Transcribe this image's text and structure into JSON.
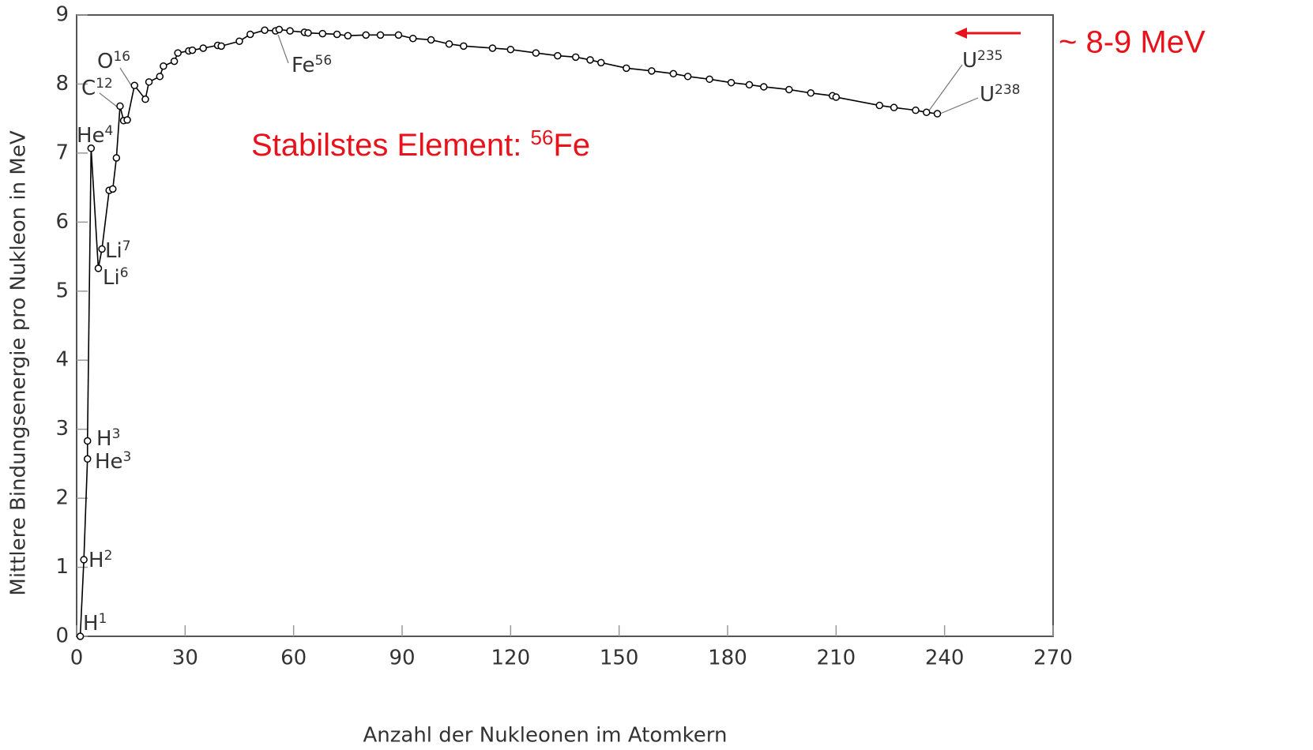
{
  "chart_data": {
    "type": "line",
    "xlabel": "Anzahl der Nukleonen im Atomkern",
    "ylabel": "Mittlere Bindungsenergie pro Nukleon in MeV",
    "x": [
      1,
      2,
      3,
      3,
      4,
      6,
      7,
      9,
      10,
      11,
      12,
      13,
      14,
      16,
      19,
      20,
      23,
      24,
      27,
      28,
      31,
      32,
      35,
      39,
      40,
      45,
      48,
      52,
      55,
      56,
      59,
      63,
      64,
      68,
      72,
      75,
      80,
      84,
      89,
      93,
      98,
      103,
      107,
      115,
      120,
      127,
      133,
      138,
      142,
      145,
      152,
      159,
      165,
      169,
      175,
      181,
      186,
      190,
      197,
      203,
      209,
      210,
      222,
      226,
      232,
      235,
      238
    ],
    "values": [
      0,
      1.11,
      2.57,
      2.83,
      7.07,
      5.33,
      5.61,
      6.46,
      6.48,
      6.93,
      7.68,
      7.47,
      7.48,
      7.98,
      7.78,
      8.03,
      8.11,
      8.26,
      8.33,
      8.45,
      8.48,
      8.49,
      8.52,
      8.56,
      8.55,
      8.62,
      8.72,
      8.78,
      8.77,
      8.79,
      8.77,
      8.75,
      8.74,
      8.73,
      8.72,
      8.7,
      8.71,
      8.71,
      8.71,
      8.66,
      8.64,
      8.58,
      8.55,
      8.52,
      8.5,
      8.45,
      8.41,
      8.39,
      8.35,
      8.31,
      8.23,
      8.19,
      8.15,
      8.11,
      8.07,
      8.02,
      7.99,
      7.96,
      7.92,
      7.87,
      7.83,
      7.81,
      7.69,
      7.66,
      7.62,
      7.59,
      7.57
    ],
    "color": "#000000",
    "marker_fill": "#ffffff",
    "xlim": [
      0,
      270
    ],
    "xticks": [
      0,
      30,
      60,
      90,
      120,
      150,
      180,
      210,
      240,
      270
    ],
    "ylim": [
      0,
      9
    ],
    "yticks": [
      0,
      1,
      2,
      3,
      4,
      5,
      6,
      7,
      8,
      9
    ],
    "annotations": [
      {
        "text": "H",
        "sup": "1"
      },
      {
        "text": "H",
        "sup": "2"
      },
      {
        "text": "H",
        "sup": "3"
      },
      {
        "text": "He",
        "sup": "3"
      },
      {
        "text": "He",
        "sup": "4"
      },
      {
        "text": "Li",
        "sup": "7"
      },
      {
        "text": "Li",
        "sup": "6"
      },
      {
        "text": "C",
        "sup": "12"
      },
      {
        "text": "O",
        "sup": "16"
      },
      {
        "text": "Fe",
        "sup": "56"
      },
      {
        "text": "U",
        "sup": "235"
      },
      {
        "text": "U",
        "sup": "238"
      }
    ],
    "note": {
      "prefix": "Stabilstes Element: ",
      "sup": "56",
      "suffix": "Fe"
    },
    "range_note": "~ 8-9 MeV"
  }
}
